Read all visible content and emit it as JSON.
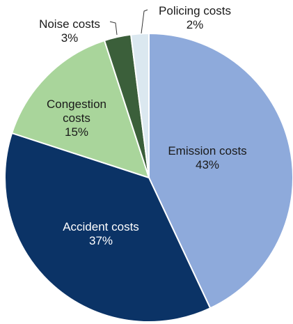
{
  "chart_data": {
    "type": "pie",
    "categories": [
      "Emission costs",
      "Accident costs",
      "Congestion costs",
      "Noise costs",
      "Policing costs"
    ],
    "values": [
      43,
      37,
      15,
      3,
      2
    ],
    "value_labels": [
      "43%",
      "37%",
      "15%",
      "3%",
      "2%"
    ],
    "colors": [
      "#8eaadb",
      "#0b3366",
      "#a9d59b",
      "#3b5f3a",
      "#dbe8f0"
    ],
    "start_angle": 0,
    "direction": "clockwise"
  }
}
